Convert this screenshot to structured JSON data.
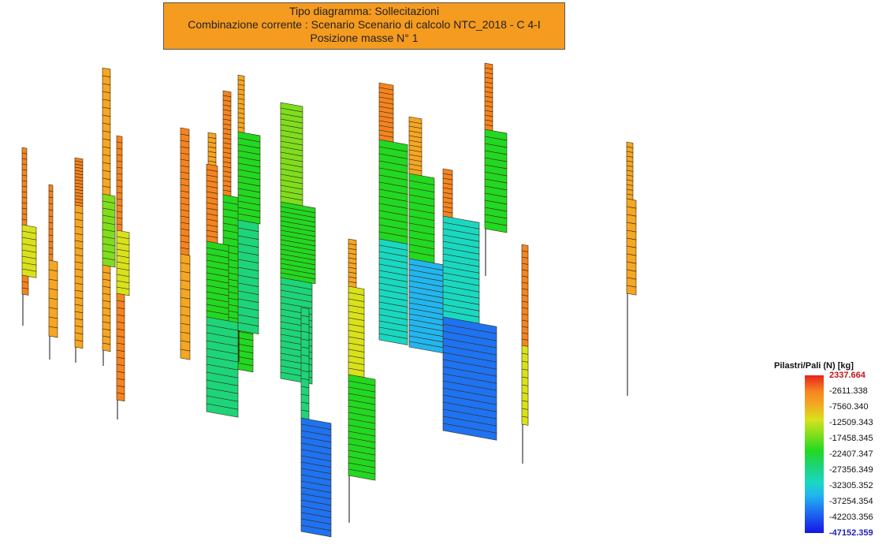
{
  "header": {
    "line1": "Tipo diagramma: Sollecitazioni",
    "line2": "Combinazione corrente : Scenario Scenario di calcolo NTC_2018 - C 4-I",
    "line3": "Posizione masse N° 1"
  },
  "legend": {
    "title": "Pilastri/Pali (N) [kg]",
    "labels": [
      "2337.664",
      "-2611.338",
      "-7560.340",
      "-12509.343",
      "-17458.345",
      "-22407.347",
      "-27356.349",
      "-32305.352",
      "-37254.354",
      "-42203.356",
      "-47152.359"
    ]
  },
  "colors": {
    "red": "#e8231d",
    "orange": "#f58420",
    "amber": "#f5a623",
    "yellow": "#d8e21c",
    "lime": "#7ede1e",
    "green": "#22d822",
    "teal": "#1ed47a",
    "cyan": "#19d8c2",
    "sky": "#22b6f0",
    "blue": "#1f72f0",
    "navy": "#1515e6"
  },
  "scene": {
    "columns": [
      {
        "segments": [
          {
            "value": -3500,
            "n": 14
          },
          {
            "value": -14000,
            "n": 8
          },
          {
            "value": -5000,
            "n": 3
          }
        ]
      },
      {
        "segments": [
          {
            "value": -3500,
            "n": 12
          },
          {
            "value": -7000,
            "n": 8
          }
        ]
      },
      {
        "segments": [
          {
            "value": -3000,
            "n": 15
          },
          {
            "value": -7500,
            "n": 20
          }
        ]
      },
      {
        "segments": [
          {
            "value": -6000,
            "n": 16
          },
          {
            "value": -18500,
            "n": 10
          },
          {
            "value": -9000,
            "n": 12
          }
        ]
      },
      {
        "segments": [
          {
            "value": -4500,
            "n": 15
          },
          {
            "value": -14500,
            "n": 10
          },
          {
            "value": -5000,
            "n": 15
          }
        ]
      },
      {
        "segments": [
          {
            "value": -3500,
            "n": 20
          },
          {
            "value": -9500,
            "n": 12
          }
        ]
      },
      {
        "segments": [
          {
            "value": -8500,
            "n": 12
          },
          {
            "value": -4000,
            "n": 12
          }
        ]
      },
      {
        "segments": [
          {
            "value": -4000,
            "n": 22
          },
          {
            "value": -20500,
            "n": 10
          },
          {
            "value": -23500,
            "n": 16
          }
        ]
      },
      {
        "segments": [
          {
            "value": -3000,
            "n": 14
          },
          {
            "value": -22000,
            "n": 12
          },
          {
            "value": -28500,
            "n": 12
          }
        ]
      },
      {
        "segments": [
          {
            "value": -6500,
            "n": 12
          },
          {
            "value": -24500,
            "n": 14
          },
          {
            "value": -28000,
            "n": 14
          }
        ]
      },
      {
        "segments": [
          {
            "value": -18000,
            "n": 18
          },
          {
            "value": -23000,
            "n": 16
          },
          {
            "value": -26500,
            "n": 16
          }
        ]
      },
      {
        "segments": [
          {
            "value": -25500,
            "n": 14
          },
          {
            "value": -41000,
            "n": 18
          }
        ]
      },
      {
        "segments": [
          {
            "value": -6000,
            "n": 10
          },
          {
            "value": -13500,
            "n": 14
          },
          {
            "value": -22500,
            "n": 16
          }
        ]
      },
      {
        "segments": [
          {
            "value": -4000,
            "n": 12
          },
          {
            "value": -23000,
            "n": 14
          },
          {
            "value": -34000,
            "n": 16
          }
        ]
      },
      {
        "segments": [
          {
            "value": -6000,
            "n": 12
          },
          {
            "value": -21500,
            "n": 12
          },
          {
            "value": -36500,
            "n": 16
          }
        ]
      },
      {
        "segments": [
          {
            "value": -4500,
            "n": 10
          },
          {
            "value": -34000,
            "n": 16
          },
          {
            "value": -44500,
            "n": 16
          }
        ]
      },
      {
        "segments": [
          {
            "value": -4000,
            "n": 14
          },
          {
            "value": -20000,
            "n": 14
          }
        ]
      },
      {
        "segments": [
          {
            "value": -4500,
            "n": 16
          },
          {
            "value": -10500,
            "n": 10
          }
        ]
      },
      {
        "segments": [
          {
            "value": -5500,
            "n": 12
          },
          {
            "value": -9500,
            "n": 12
          }
        ]
      }
    ]
  }
}
